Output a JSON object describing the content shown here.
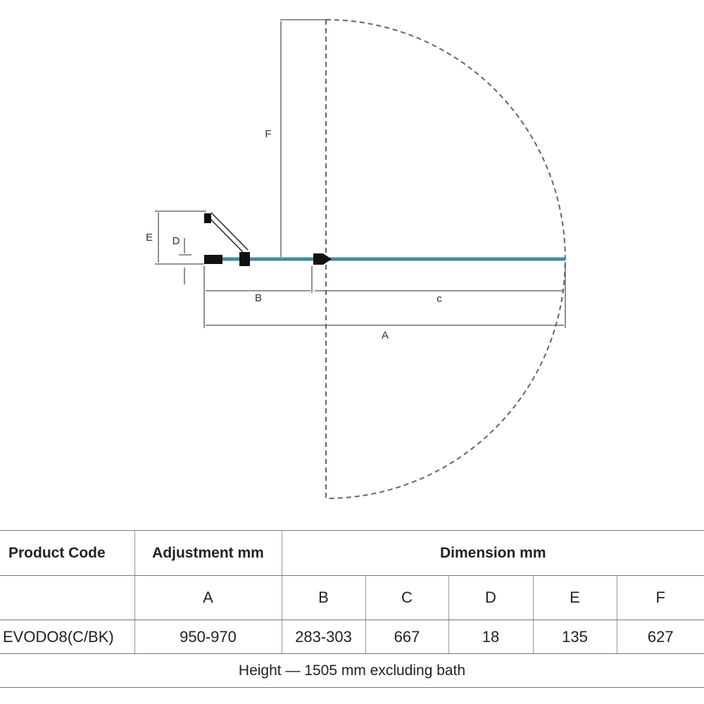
{
  "diagram": {
    "labels": {
      "f": "F",
      "e": "E",
      "d": "D",
      "b": "B",
      "c": "c",
      "a": "A"
    }
  },
  "table": {
    "header": [
      "Product Code",
      "Adjustment mm",
      "Dimension mm"
    ],
    "subheader": [
      "A",
      "B",
      "C",
      "D",
      "E",
      "F"
    ],
    "rows": [
      [
        "EVODO8(C/BK)",
        "950-970",
        "283-303",
        "667",
        "18",
        "135",
        "627"
      ]
    ],
    "footer": "Height — 1505 mm excluding bath"
  }
}
